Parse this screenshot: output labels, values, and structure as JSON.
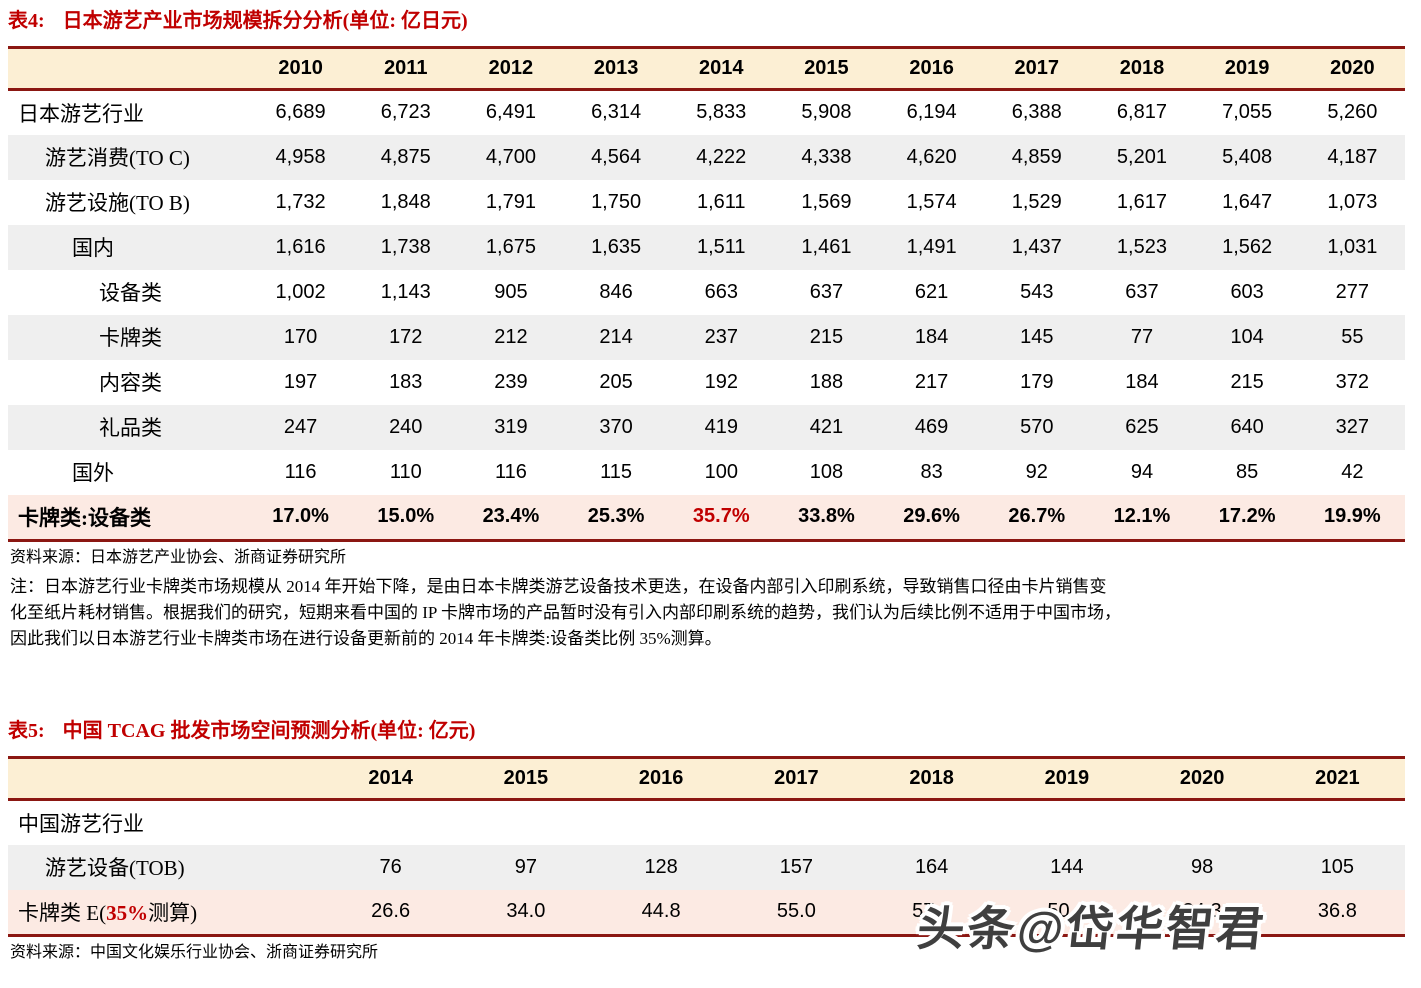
{
  "colors": {
    "accent_red": "#c00000",
    "border_maroon": "#8b1712",
    "header_cream": "#fcefd4",
    "row_gray": "#efefef",
    "row_pink": "#fceae3",
    "watermark_gray": "#3f3f3f"
  },
  "table4": {
    "label": "表4:",
    "title": "日本游艺产业市场规模拆分分析(单位: 亿日元)",
    "years": [
      "2010",
      "2011",
      "2012",
      "2013",
      "2014",
      "2015",
      "2016",
      "2017",
      "2018",
      "2019",
      "2020"
    ],
    "rows": [
      {
        "label": "日本游艺行业",
        "indent": 0,
        "values": [
          "6,689",
          "6,723",
          "6,491",
          "6,314",
          "5,833",
          "5,908",
          "6,194",
          "6,388",
          "6,817",
          "7,055",
          "5,260"
        ]
      },
      {
        "label": "游艺消费(TO C)",
        "indent": 1,
        "values": [
          "4,958",
          "4,875",
          "4,700",
          "4,564",
          "4,222",
          "4,338",
          "4,620",
          "4,859",
          "5,201",
          "5,408",
          "4,187"
        ]
      },
      {
        "label": "游艺设施(TO B)",
        "indent": 1,
        "values": [
          "1,732",
          "1,848",
          "1,791",
          "1,750",
          "1,611",
          "1,569",
          "1,574",
          "1,529",
          "1,617",
          "1,647",
          "1,073"
        ]
      },
      {
        "label": "国内",
        "indent": 2,
        "values": [
          "1,616",
          "1,738",
          "1,675",
          "1,635",
          "1,511",
          "1,461",
          "1,491",
          "1,437",
          "1,523",
          "1,562",
          "1,031"
        ]
      },
      {
        "label": "设备类",
        "indent": 3,
        "values": [
          "1,002",
          "1,143",
          "905",
          "846",
          "663",
          "637",
          "621",
          "543",
          "637",
          "603",
          "277"
        ]
      },
      {
        "label": "卡牌类",
        "indent": 3,
        "values": [
          "170",
          "172",
          "212",
          "214",
          "237",
          "215",
          "184",
          "145",
          "77",
          "104",
          "55"
        ]
      },
      {
        "label": "内容类",
        "indent": 3,
        "values": [
          "197",
          "183",
          "239",
          "205",
          "192",
          "188",
          "217",
          "179",
          "184",
          "215",
          "372"
        ]
      },
      {
        "label": "礼品类",
        "indent": 3,
        "values": [
          "247",
          "240",
          "319",
          "370",
          "419",
          "421",
          "469",
          "570",
          "625",
          "640",
          "327"
        ]
      },
      {
        "label": "国外",
        "indent": 2,
        "values": [
          "116",
          "110",
          "116",
          "115",
          "100",
          "108",
          "83",
          "92",
          "94",
          "85",
          "42"
        ]
      },
      {
        "label": "卡牌类:设备类",
        "indent": 0,
        "bold": true,
        "highlight": true,
        "red_value_index": 4,
        "values": [
          "17.0%",
          "15.0%",
          "23.4%",
          "25.3%",
          "35.7%",
          "33.8%",
          "29.6%",
          "26.7%",
          "12.1%",
          "17.2%",
          "19.9%"
        ]
      }
    ],
    "source": "资料来源：日本游艺产业协会、浙商证券研究所",
    "note_lines": [
      "注：日本游艺行业卡牌类市场规模从 2014 年开始下降，是由日本卡牌类游艺设备技术更迭，在设备内部引入印刷系统，导致销售口径由卡片销售变",
      "化至纸片耗材销售。根据我们的研究，短期来看中国的 IP 卡牌市场的产品暂时没有引入内部印刷系统的趋势，我们认为后续比例不适用于中国市场，",
      "因此我们以日本游艺行业卡牌类市场在进行设备更新前的 2014 年卡牌类:设备类比例 35%测算。"
    ]
  },
  "table5": {
    "label": "表5:",
    "title": "中国 TCAG 批发市场空间预测分析(单位: 亿元)",
    "years": [
      "2014",
      "2015",
      "2016",
      "2017",
      "2018",
      "2019",
      "2020",
      "2021"
    ],
    "rows": [
      {
        "label": "中国游艺行业",
        "indent": 0,
        "values": [
          "",
          "",
          "",
          "",
          "",
          "",
          "",
          ""
        ]
      },
      {
        "label": "游艺设备(TOB)",
        "indent": 1,
        "values": [
          "76",
          "97",
          "128",
          "157",
          "164",
          "144",
          "98",
          "105"
        ]
      },
      {
        "label": "卡牌类 E(35%测算)",
        "indent": 0,
        "highlight": true,
        "label_red": "35%",
        "values": [
          "26.6",
          "34.0",
          "44.8",
          "55.0",
          "57.4",
          "50.4",
          "34.3",
          "36.8"
        ]
      }
    ],
    "source": "资料来源：中国文化娱乐行业协会、浙商证券研究所"
  },
  "watermark": {
    "text": "头条@岱华智君"
  }
}
